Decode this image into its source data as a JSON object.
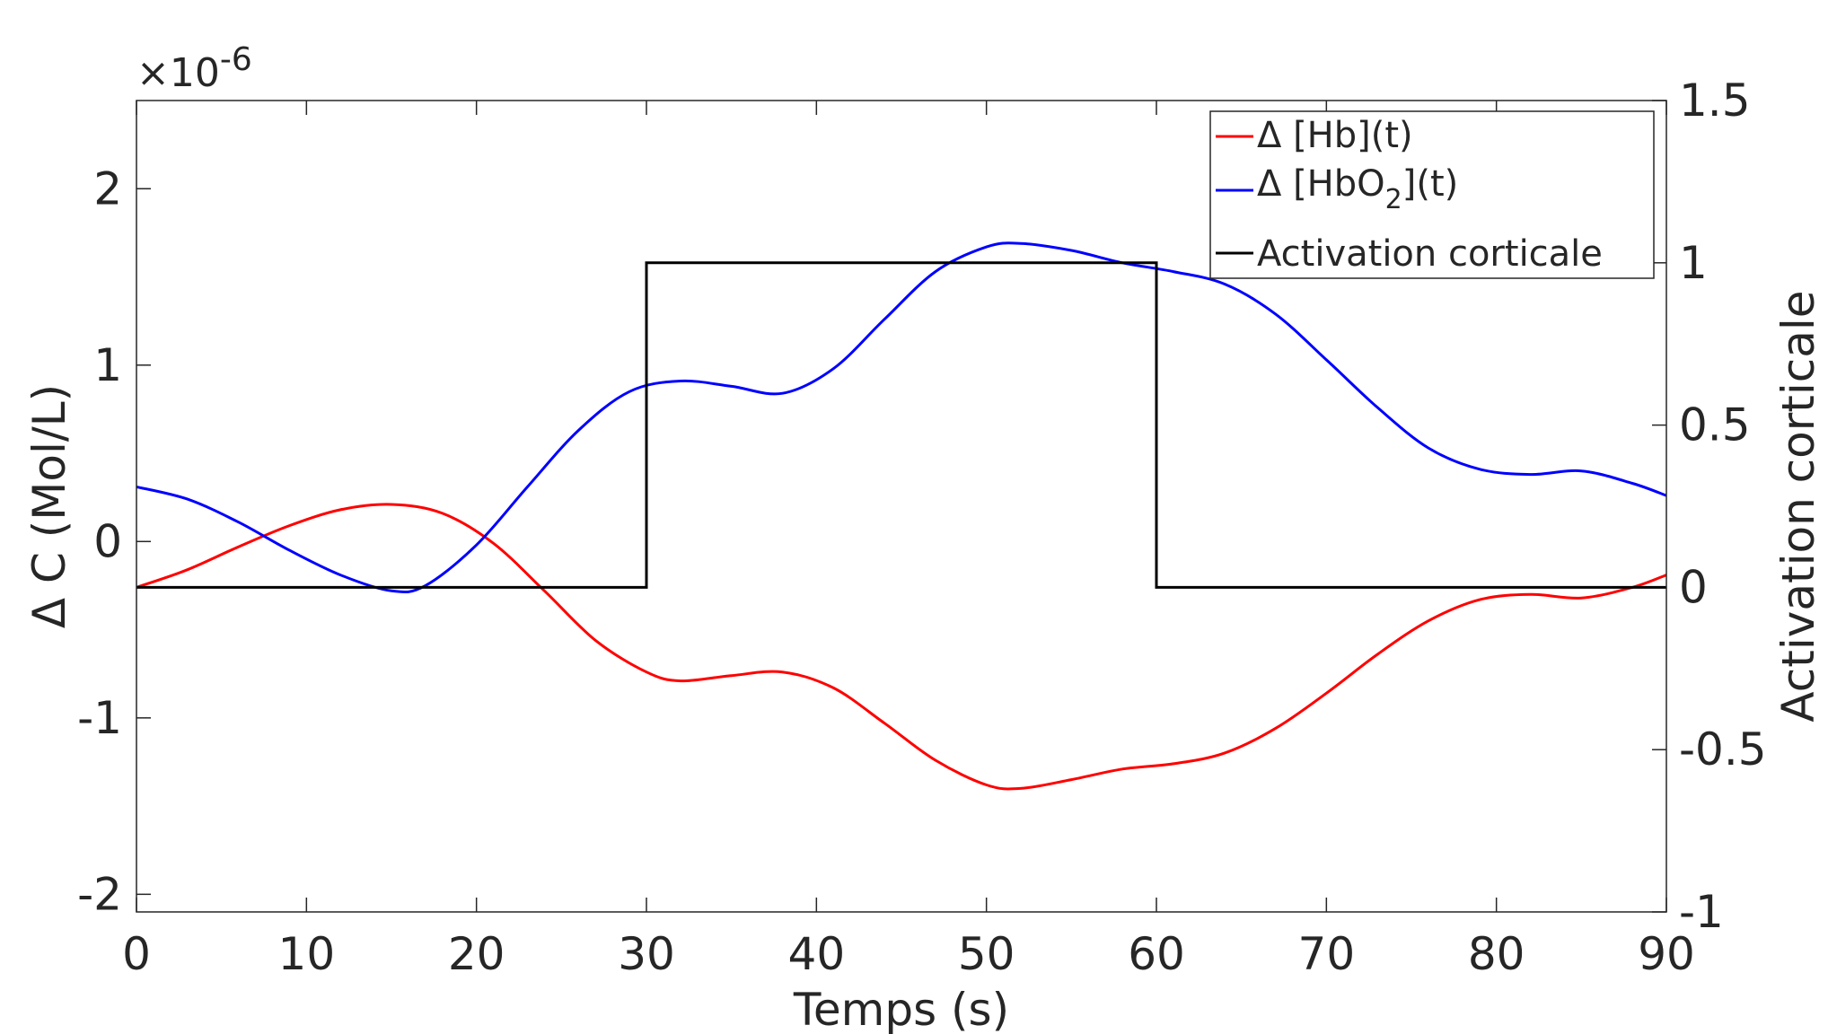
{
  "chart_data": {
    "type": "line",
    "title": "",
    "xlabel": "Temps (s)",
    "ylabel_left": "Δ C (Mol/L)",
    "ylabel_right": "Activation corticale",
    "left_axis_multiplier_label": "×10",
    "left_axis_multiplier_exp": "-6",
    "xlim": [
      0,
      90
    ],
    "ylim_left": [
      -2.1,
      2.5
    ],
    "ylim_right": [
      -1,
      1.5
    ],
    "x_ticks": [
      0,
      10,
      20,
      30,
      40,
      50,
      60,
      70,
      80,
      90
    ],
    "x_tick_labels": [
      "0",
      "10",
      "20",
      "30",
      "40",
      "50",
      "60",
      "70",
      "80",
      "90"
    ],
    "y_left_ticks": [
      -2,
      -1,
      0,
      1,
      2
    ],
    "y_left_tick_labels": [
      "-2",
      "-1",
      "0",
      "1",
      "2"
    ],
    "y_right_ticks": [
      -1,
      -0.5,
      0,
      0.5,
      1,
      1.5
    ],
    "y_right_tick_labels": [
      "-1",
      "-0.5",
      "0",
      "0.5",
      "1",
      "1.5"
    ],
    "grid": false,
    "legend_position": "top-right",
    "series": [
      {
        "name": "Δ [Hb](t)",
        "legend_main": "Δ [Hb](t)",
        "axis": "left",
        "color": "#ff0000",
        "x": [
          0,
          3,
          6,
          9,
          12,
          15,
          18,
          21,
          24,
          27,
          30,
          32,
          35,
          38,
          41,
          44,
          47,
          50,
          52,
          55,
          58,
          61,
          64,
          67,
          70,
          73,
          76,
          79,
          82,
          85,
          88,
          90
        ],
        "values": [
          -0.26,
          -0.16,
          -0.03,
          0.09,
          0.18,
          0.21,
          0.16,
          -0.01,
          -0.28,
          -0.56,
          -0.74,
          -0.79,
          -0.76,
          -0.74,
          -0.83,
          -1.03,
          -1.24,
          -1.38,
          -1.4,
          -1.35,
          -1.29,
          -1.26,
          -1.2,
          -1.06,
          -0.86,
          -0.64,
          -0.45,
          -0.33,
          -0.3,
          -0.32,
          -0.26,
          -0.19
        ]
      },
      {
        "name": "Δ [HbO2](t)",
        "legend_main": "Δ [HbO",
        "legend_sub": "2",
        "legend_suffix": "](t)",
        "axis": "left",
        "color": "#0000ff",
        "x": [
          0,
          3,
          6,
          9,
          12,
          15,
          17,
          20,
          23,
          26,
          29,
          32,
          35,
          38,
          41,
          44,
          47,
          50,
          52,
          55,
          58,
          61,
          64,
          67,
          70,
          73,
          76,
          79,
          82,
          85,
          88,
          90
        ],
        "values": [
          0.31,
          0.24,
          0.11,
          -0.05,
          -0.19,
          -0.28,
          -0.25,
          -0.02,
          0.31,
          0.63,
          0.85,
          0.91,
          0.88,
          0.84,
          0.98,
          1.26,
          1.53,
          1.67,
          1.69,
          1.65,
          1.58,
          1.53,
          1.46,
          1.29,
          1.03,
          0.76,
          0.53,
          0.41,
          0.38,
          0.4,
          0.33,
          0.26
        ]
      },
      {
        "name": "Activation corticale",
        "legend_main": "Activation corticale",
        "axis": "right",
        "color": "#000000",
        "step": true,
        "x": [
          0,
          30,
          30,
          60,
          60,
          90
        ],
        "values": [
          0,
          0,
          1,
          1,
          0,
          0
        ]
      }
    ]
  }
}
